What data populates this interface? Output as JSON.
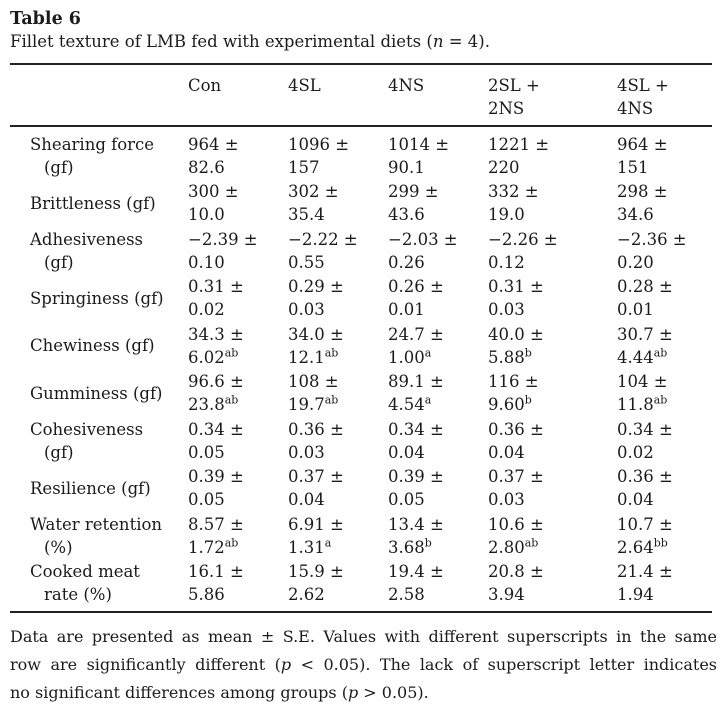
{
  "colors": {
    "text": "#1b1b1b",
    "rule": "#222222",
    "background": "#ffffff"
  },
  "title": "Table 6",
  "caption_segments": [
    {
      "t": "Fillet texture of LMB fed with experimental diets ("
    },
    {
      "t": "n",
      "i": true
    },
    {
      "t": " = 4)."
    }
  ],
  "table": {
    "col_headers": [
      {
        "lines": [
          "Con"
        ]
      },
      {
        "lines": [
          "4SL"
        ]
      },
      {
        "lines": [
          "4NS"
        ]
      },
      {
        "lines": [
          "2SL +",
          "2NS"
        ]
      },
      {
        "lines": [
          "4SL +",
          "4NS"
        ]
      }
    ],
    "rows": [
      {
        "label_lines": [
          "Shearing force",
          "(gf)"
        ],
        "cells": [
          {
            "mean_pm": "964 ±",
            "se": "82.6",
            "sup": ""
          },
          {
            "mean_pm": "1096 ±",
            "se": "157",
            "sup": ""
          },
          {
            "mean_pm": "1014 ±",
            "se": "90.1",
            "sup": ""
          },
          {
            "mean_pm": "1221 ±",
            "se": "220",
            "sup": ""
          },
          {
            "mean_pm": "964 ±",
            "se": "151",
            "sup": ""
          }
        ]
      },
      {
        "label_lines": [
          "Brittleness (gf)"
        ],
        "cells": [
          {
            "mean_pm": "300 ±",
            "se": "10.0",
            "sup": ""
          },
          {
            "mean_pm": "302 ±",
            "se": "35.4",
            "sup": ""
          },
          {
            "mean_pm": "299 ±",
            "se": "43.6",
            "sup": ""
          },
          {
            "mean_pm": "332 ±",
            "se": "19.0",
            "sup": ""
          },
          {
            "mean_pm": "298 ±",
            "se": "34.6",
            "sup": ""
          }
        ]
      },
      {
        "label_lines": [
          "Adhesiveness",
          "(gf)"
        ],
        "cells": [
          {
            "mean_pm": "−2.39 ±",
            "se": "0.10",
            "sup": ""
          },
          {
            "mean_pm": "−2.22 ±",
            "se": "0.55",
            "sup": ""
          },
          {
            "mean_pm": "−2.03 ±",
            "se": "0.26",
            "sup": ""
          },
          {
            "mean_pm": "−2.26 ±",
            "se": "0.12",
            "sup": ""
          },
          {
            "mean_pm": "−2.36 ±",
            "se": "0.20",
            "sup": ""
          }
        ]
      },
      {
        "label_lines": [
          "Springiness (gf)"
        ],
        "cells": [
          {
            "mean_pm": "0.31 ±",
            "se": "0.02",
            "sup": ""
          },
          {
            "mean_pm": "0.29 ±",
            "se": "0.03",
            "sup": ""
          },
          {
            "mean_pm": "0.26 ±",
            "se": "0.01",
            "sup": ""
          },
          {
            "mean_pm": "0.31 ±",
            "se": "0.03",
            "sup": ""
          },
          {
            "mean_pm": "0.28 ±",
            "se": "0.01",
            "sup": ""
          }
        ]
      },
      {
        "label_lines": [
          "Chewiness (gf)"
        ],
        "cells": [
          {
            "mean_pm": "34.3 ±",
            "se": "6.02",
            "sup": "ab"
          },
          {
            "mean_pm": "34.0 ±",
            "se": "12.1",
            "sup": "ab"
          },
          {
            "mean_pm": "24.7 ±",
            "se": "1.00",
            "sup": "a"
          },
          {
            "mean_pm": "40.0 ±",
            "se": "5.88",
            "sup": "b"
          },
          {
            "mean_pm": "30.7 ±",
            "se": "4.44",
            "sup": "ab"
          }
        ]
      },
      {
        "label_lines": [
          "Gumminess (gf)"
        ],
        "cells": [
          {
            "mean_pm": "96.6 ±",
            "se": "23.8",
            "sup": "ab"
          },
          {
            "mean_pm": "108 ±",
            "se": "19.7",
            "sup": "ab"
          },
          {
            "mean_pm": "89.1 ±",
            "se": "4.54",
            "sup": "a"
          },
          {
            "mean_pm": "116 ±",
            "se": "9.60",
            "sup": "b"
          },
          {
            "mean_pm": "104 ±",
            "se": "11.8",
            "sup": "ab"
          }
        ]
      },
      {
        "label_lines": [
          "Cohesiveness",
          "(gf)"
        ],
        "cells": [
          {
            "mean_pm": "0.34 ±",
            "se": "0.05",
            "sup": ""
          },
          {
            "mean_pm": "0.36 ±",
            "se": "0.03",
            "sup": ""
          },
          {
            "mean_pm": "0.34 ±",
            "se": "0.04",
            "sup": ""
          },
          {
            "mean_pm": "0.36 ±",
            "se": "0.04",
            "sup": ""
          },
          {
            "mean_pm": "0.34 ±",
            "se": "0.02",
            "sup": ""
          }
        ]
      },
      {
        "label_lines": [
          "Resilience (gf)"
        ],
        "cells": [
          {
            "mean_pm": "0.39 ±",
            "se": "0.05",
            "sup": ""
          },
          {
            "mean_pm": "0.37 ±",
            "se": "0.04",
            "sup": ""
          },
          {
            "mean_pm": "0.39 ±",
            "se": "0.05",
            "sup": ""
          },
          {
            "mean_pm": "0.37 ±",
            "se": "0.03",
            "sup": ""
          },
          {
            "mean_pm": "0.36 ±",
            "se": "0.04",
            "sup": ""
          }
        ]
      },
      {
        "label_lines": [
          "Water retention",
          "(%)"
        ],
        "cells": [
          {
            "mean_pm": "8.57 ±",
            "se": "1.72",
            "sup": "ab"
          },
          {
            "mean_pm": "6.91 ±",
            "se": "1.31",
            "sup": "a"
          },
          {
            "mean_pm": "13.4 ±",
            "se": "3.68",
            "sup": "b"
          },
          {
            "mean_pm": "10.6 ±",
            "se": "2.80",
            "sup": "ab"
          },
          {
            "mean_pm": "10.7 ±",
            "se": "2.64",
            "sup": "bb"
          }
        ]
      },
      {
        "label_lines": [
          "Cooked meat",
          "rate (%)"
        ],
        "cells": [
          {
            "mean_pm": "16.1 ±",
            "se": "5.86",
            "sup": ""
          },
          {
            "mean_pm": "15.9 ±",
            "se": "2.62",
            "sup": ""
          },
          {
            "mean_pm": "19.4 ±",
            "se": "2.58",
            "sup": ""
          },
          {
            "mean_pm": "20.8 ±",
            "se": "3.94",
            "sup": ""
          },
          {
            "mean_pm": "21.4 ±",
            "se": "1.94",
            "sup": ""
          }
        ]
      }
    ]
  },
  "footnote_lines": [
    [
      {
        "t": "Data are presented as mean ± S.E. Values with different superscripts in the same"
      }
    ],
    [
      {
        "t": "row are significantly different ("
      },
      {
        "t": "p",
        "i": true
      },
      {
        "t": " < 0.05). The lack of superscript letter indicates"
      }
    ],
    [
      {
        "t": "no significant differences among groups ("
      },
      {
        "t": "p",
        "i": true
      },
      {
        "t": " > 0.05)."
      }
    ]
  ]
}
